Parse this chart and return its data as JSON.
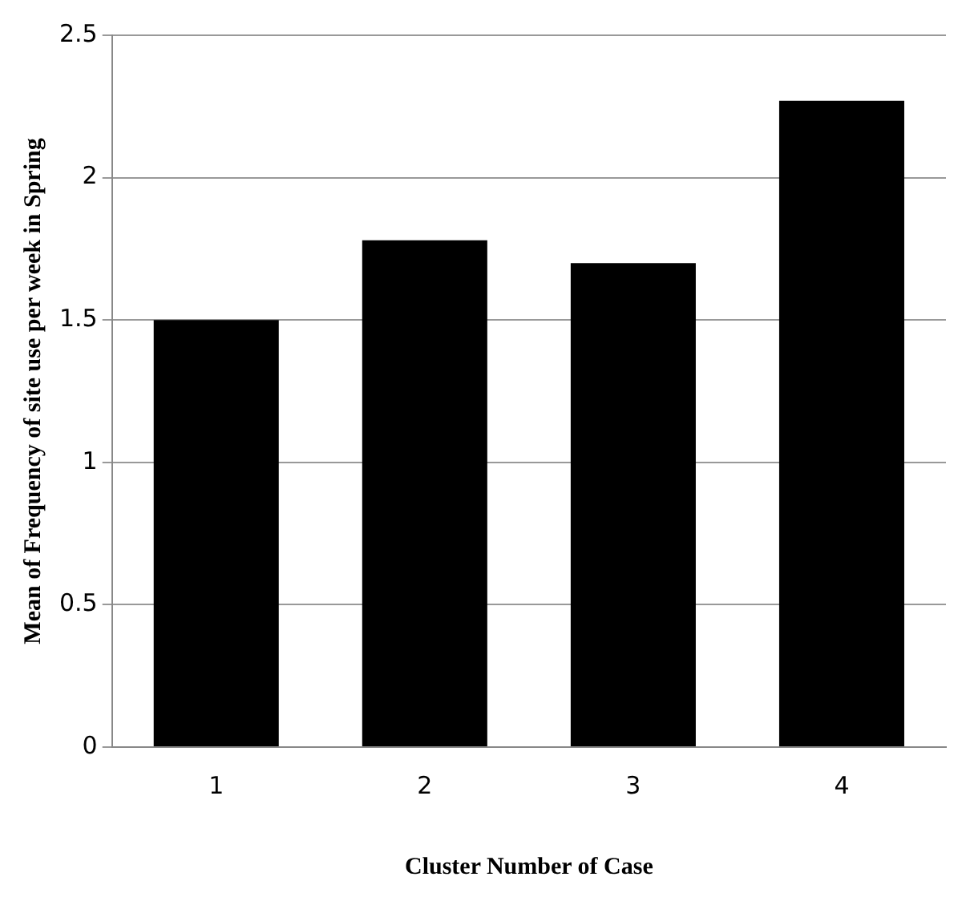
{
  "chart_data": {
    "type": "bar",
    "xlabel": "Cluster Number of Case",
    "ylabel": "Mean of Frequency of site use per week in Spring",
    "categories": [
      "1",
      "2",
      "3",
      "4"
    ],
    "values": [
      1.5,
      1.78,
      1.7,
      2.27
    ],
    "color": "#000000",
    "ylim": [
      0,
      2.5
    ],
    "yticks": [
      0,
      0.5,
      1,
      1.5,
      2,
      2.5
    ],
    "grid": "y",
    "legend": false
  }
}
